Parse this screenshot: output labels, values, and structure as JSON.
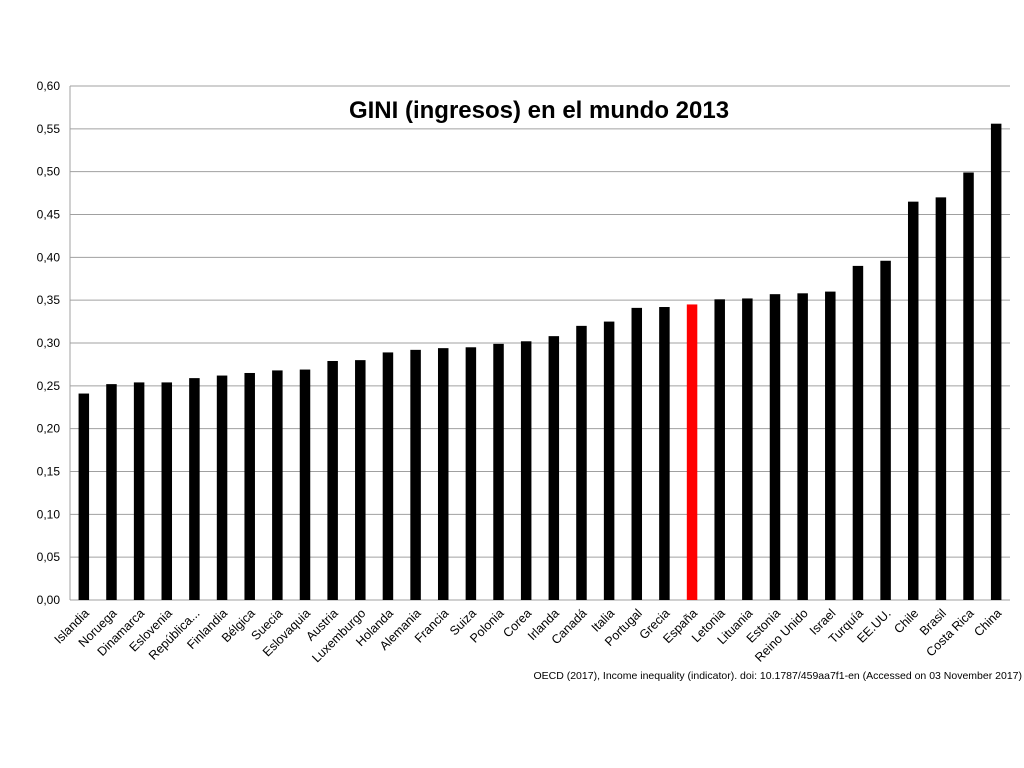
{
  "chart_data": {
    "type": "bar",
    "title": "GINI (ingresos) en el mundo 2013",
    "source": "OECD (2017), Income inequality (indicator). doi: 10.1787/459aa7f1-en (Accessed on 03 November 2017)",
    "categories": [
      "Islandia",
      "Noruega",
      "Dinamarca",
      "Eslovenia",
      "República...",
      "Finlandia",
      "Bélgica",
      "Suecia",
      "Eslovaquia",
      "Austria",
      "Luxemburgo",
      "Holanda",
      "Alemania",
      "Francia",
      "Suiza",
      "Polonia",
      "Corea",
      "Irlanda",
      "Canadá",
      "Italia",
      "Portugal",
      "Grecia",
      "España",
      "Letonia",
      "Lituania",
      "Estonia",
      "Reino Unido",
      "Israel",
      "Turquía",
      "EE.UU.",
      "Chile",
      "Brasil",
      "Costa Rica",
      "China"
    ],
    "values": [
      0.241,
      0.252,
      0.254,
      0.254,
      0.259,
      0.262,
      0.265,
      0.268,
      0.269,
      0.279,
      0.28,
      0.289,
      0.292,
      0.294,
      0.295,
      0.299,
      0.302,
      0.308,
      0.32,
      0.325,
      0.341,
      0.342,
      0.345,
      0.351,
      0.352,
      0.357,
      0.358,
      0.36,
      0.39,
      0.396,
      0.465,
      0.47,
      0.499,
      0.556
    ],
    "highlight": "España",
    "highlight_color": "#ff0000",
    "bar_color": "#000000",
    "grid_color": "#a0a0a0",
    "ylim": [
      0,
      0.6
    ],
    "ytick_step": 0.05,
    "ytick_labels": [
      "0,00",
      "0,05",
      "0,10",
      "0,15",
      "0,20",
      "0,25",
      "0,30",
      "0,35",
      "0,40",
      "0,45",
      "0,50",
      "0,55",
      "0,60"
    ],
    "grid": true,
    "legend": "none"
  }
}
